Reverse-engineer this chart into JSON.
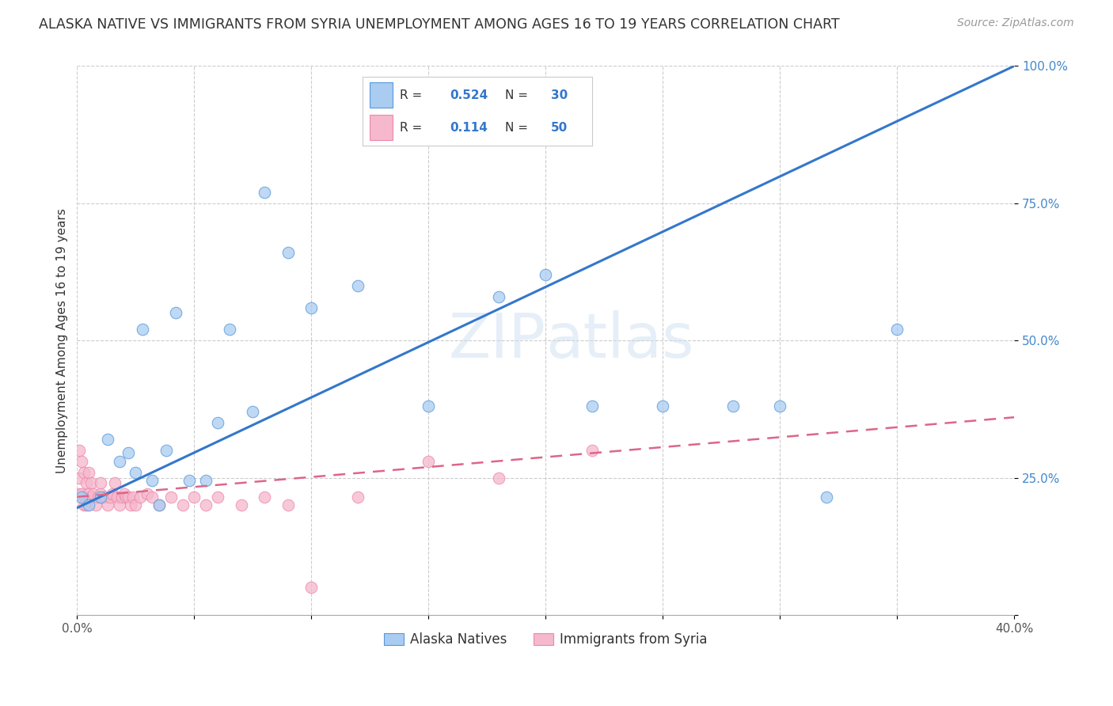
{
  "title": "ALASKA NATIVE VS IMMIGRANTS FROM SYRIA UNEMPLOYMENT AMONG AGES 16 TO 19 YEARS CORRELATION CHART",
  "source": "Source: ZipAtlas.com",
  "ylabel": "Unemployment Among Ages 16 to 19 years",
  "xlim": [
    0.0,
    0.4
  ],
  "ylim": [
    0.0,
    1.0
  ],
  "xticks": [
    0.0,
    0.05,
    0.1,
    0.15,
    0.2,
    0.25,
    0.3,
    0.35,
    0.4
  ],
  "yticks": [
    0.0,
    0.25,
    0.5,
    0.75,
    1.0
  ],
  "xtick_labels": [
    "0.0%",
    "",
    "",
    "",
    "",
    "",
    "",
    "",
    "40.0%"
  ],
  "ytick_labels": [
    "",
    "25.0%",
    "50.0%",
    "75.0%",
    "100.0%"
  ],
  "alaska_R": 0.524,
  "alaska_N": 30,
  "syria_R": 0.114,
  "syria_N": 50,
  "alaska_color": "#aaccf0",
  "alaska_edge_color": "#5599dd",
  "alaska_line_color": "#3377cc",
  "syria_color": "#f5b8cc",
  "syria_edge_color": "#ee88aa",
  "syria_line_color": "#dd6688",
  "background_color": "#ffffff",
  "watermark": "ZIPatlas",
  "alaska_x": [
    0.002,
    0.005,
    0.01,
    0.013,
    0.018,
    0.022,
    0.025,
    0.028,
    0.032,
    0.038,
    0.042,
    0.048,
    0.055,
    0.065,
    0.08,
    0.09,
    0.1,
    0.12,
    0.15,
    0.18,
    0.2,
    0.22,
    0.25,
    0.28,
    0.3,
    0.32,
    0.035,
    0.06,
    0.075,
    0.35
  ],
  "alaska_y": [
    0.215,
    0.2,
    0.215,
    0.32,
    0.28,
    0.295,
    0.26,
    0.52,
    0.245,
    0.3,
    0.55,
    0.245,
    0.245,
    0.52,
    0.77,
    0.66,
    0.56,
    0.6,
    0.38,
    0.58,
    0.62,
    0.38,
    0.38,
    0.38,
    0.38,
    0.215,
    0.2,
    0.35,
    0.37,
    0.52
  ],
  "syria_x": [
    0.001,
    0.001,
    0.001,
    0.002,
    0.002,
    0.003,
    0.003,
    0.004,
    0.004,
    0.005,
    0.005,
    0.006,
    0.006,
    0.007,
    0.008,
    0.009,
    0.01,
    0.01,
    0.011,
    0.012,
    0.013,
    0.014,
    0.015,
    0.016,
    0.017,
    0.018,
    0.019,
    0.02,
    0.021,
    0.022,
    0.023,
    0.024,
    0.025,
    0.027,
    0.03,
    0.032,
    0.035,
    0.04,
    0.045,
    0.05,
    0.055,
    0.06,
    0.07,
    0.08,
    0.09,
    0.1,
    0.12,
    0.15,
    0.18,
    0.22
  ],
  "syria_y": [
    0.22,
    0.25,
    0.3,
    0.22,
    0.28,
    0.2,
    0.26,
    0.24,
    0.2,
    0.22,
    0.26,
    0.215,
    0.24,
    0.22,
    0.2,
    0.215,
    0.22,
    0.24,
    0.215,
    0.215,
    0.2,
    0.215,
    0.22,
    0.24,
    0.215,
    0.2,
    0.215,
    0.22,
    0.215,
    0.215,
    0.2,
    0.215,
    0.2,
    0.215,
    0.22,
    0.215,
    0.2,
    0.215,
    0.2,
    0.215,
    0.2,
    0.215,
    0.2,
    0.215,
    0.2,
    0.05,
    0.215,
    0.28,
    0.25,
    0.3
  ],
  "blue_line_x0": 0.0,
  "blue_line_y0": 0.195,
  "blue_line_x1": 0.4,
  "blue_line_y1": 1.0,
  "pink_line_x0": 0.0,
  "pink_line_y0": 0.215,
  "pink_line_x1": 0.4,
  "pink_line_y1": 0.36
}
